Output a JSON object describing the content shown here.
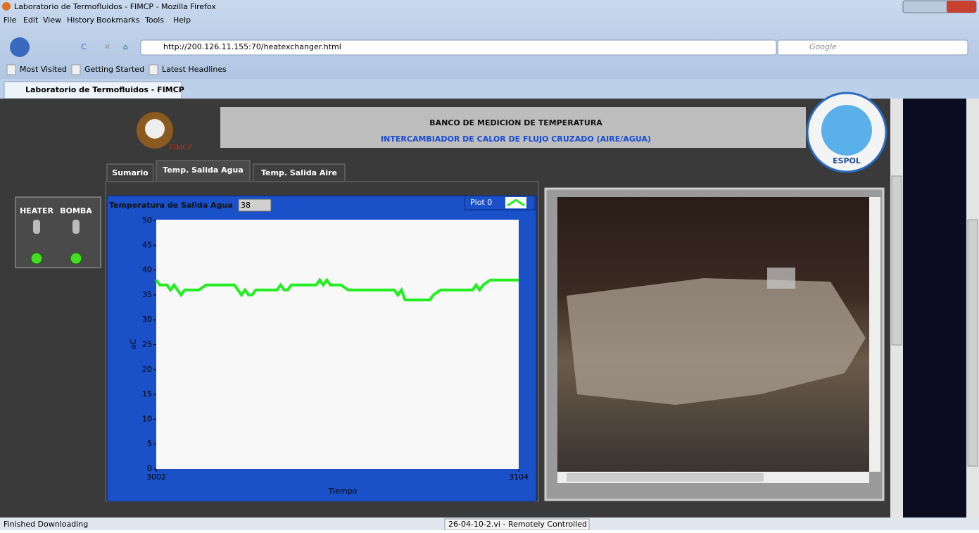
{
  "window": {
    "title": "Laboratorio de Termofluidos - FIMCP - Mozilla Firefox"
  },
  "menu": [
    "File",
    "Edit",
    "View",
    "History",
    "Bookmarks",
    "Tools",
    "Help"
  ],
  "toolbar": {
    "url": "http://200.126.11.155:70/heatexchanger.html",
    "search_placeholder": "Google"
  },
  "bookmarks": [
    "Most Visited",
    "Getting Started",
    "Latest Headlines"
  ],
  "tab": {
    "title": "Laboratorio de Termofluidos - FIMCP"
  },
  "panel": {
    "logo_text": "FIMCP",
    "title": "BANCO DE MEDICION DE TEMPERATURA",
    "subtitle": "INTERCAMBIADOR DE CALOR DE FLUJO CRUZADO (AIRE/AGUA)",
    "seal_text": "ESPOL",
    "tabs": [
      "Sumario",
      "Temp. Salida Agua",
      "Temp. Salida Aire"
    ],
    "switches": [
      "HEATER",
      "BOMBA"
    ],
    "indicator_label": "Temperatura de Salida Agua",
    "indicator_value": "38"
  },
  "chart": {
    "type": "line",
    "legend": "Plot 0",
    "ylabel": "oC",
    "xlabel": "Tiempo",
    "color": "#22ee22",
    "xlim": [
      3002,
      3104
    ],
    "xticks": [
      3002,
      3104
    ],
    "ylim": [
      0,
      50
    ],
    "yticks": [
      0,
      5,
      10,
      15,
      20,
      25,
      30,
      35,
      40,
      45,
      50
    ],
    "x": [
      3002,
      3003,
      3005,
      3006,
      3007,
      3008,
      3009,
      3010,
      3014,
      3016,
      3024,
      3025,
      3026,
      3027,
      3028,
      3029,
      3030,
      3036,
      3037,
      3038,
      3039,
      3040,
      3047,
      3048,
      3049,
      3050,
      3051,
      3054,
      3056,
      3069,
      3070,
      3071,
      3072,
      3079,
      3080,
      3082,
      3086,
      3091,
      3092,
      3093,
      3094,
      3096,
      3104
    ],
    "values": [
      38,
      37,
      37,
      36,
      37,
      36,
      35,
      36,
      36,
      37,
      37,
      36,
      35,
      36,
      35,
      35,
      36,
      36,
      37,
      36,
      36,
      37,
      37,
      38,
      37,
      38,
      37,
      37,
      36,
      36,
      35,
      36,
      34,
      34,
      35,
      36,
      36,
      36,
      37,
      36,
      37,
      38,
      38
    ]
  },
  "status": {
    "left": "Finished Downloading",
    "center": "26-04-10-2.vi - Remotely Controlled"
  }
}
